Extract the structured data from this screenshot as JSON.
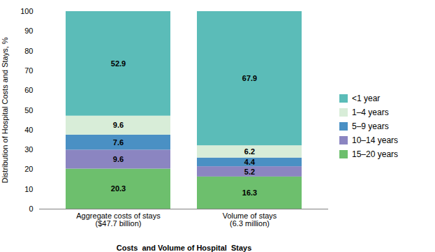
{
  "chart_data": {
    "type": "bar",
    "stacked": true,
    "categories": [
      "Aggregate costs of stays\n($47.7 billion)",
      "Volume of stays\n(6.3 million)"
    ],
    "series": [
      {
        "name": "15–20 years",
        "values": [
          20.3,
          16.3
        ],
        "color": "#6DBF6D"
      },
      {
        "name": "10–14 years",
        "values": [
          9.6,
          5.2
        ],
        "color": "#8B85C1"
      },
      {
        "name": "5–9 years",
        "values": [
          7.6,
          4.4
        ],
        "color": "#4A90C4"
      },
      {
        "name": "1–4 years",
        "values": [
          9.6,
          6.2
        ],
        "color": "#D8EDD8"
      },
      {
        "name": "<1 year",
        "values": [
          52.9,
          67.9
        ],
        "color": "#5BBCB8"
      }
    ],
    "ylabel": "Distribution of Hospital Costs and Stays, %",
    "xlabel": "Costs  and Volume of Hospital  Stays",
    "ylim": [
      0,
      100
    ],
    "yticks": [
      0,
      10,
      20,
      30,
      40,
      50,
      60,
      70,
      80,
      90,
      100
    ],
    "grid": false,
    "legend": "right",
    "data_labels": true
  }
}
